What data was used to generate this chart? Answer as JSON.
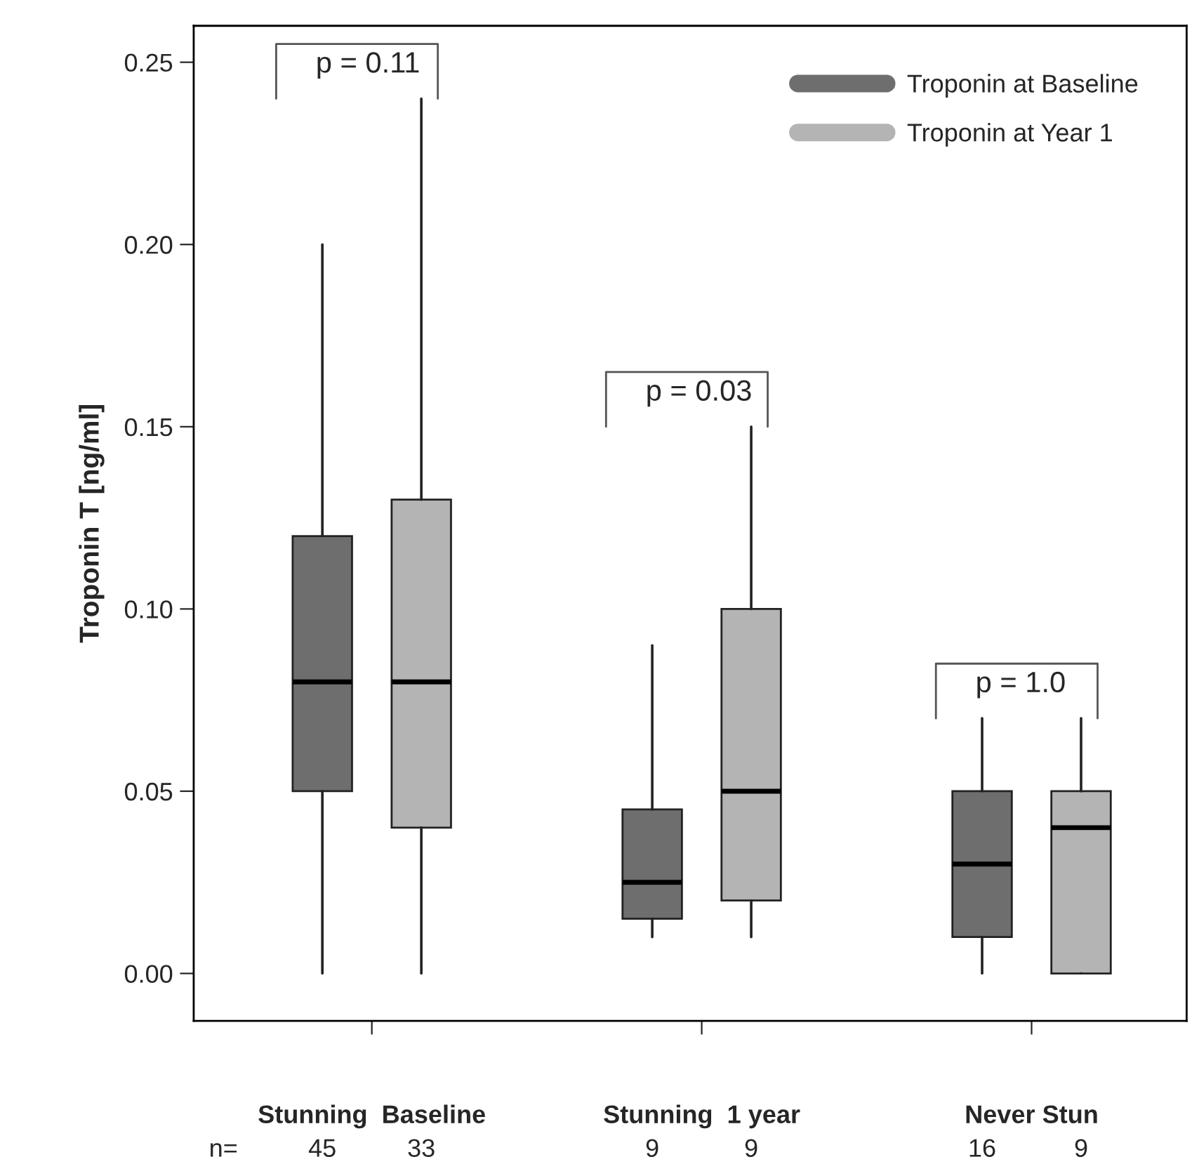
{
  "chart_data": {
    "type": "box",
    "ylabel": "Troponin T [ng/ml]",
    "categories": [
      "Stunning  Baseline",
      "Stunning  1 year",
      "Never Stun"
    ],
    "ylim": [
      -0.013,
      0.26
    ],
    "yticks": [
      {
        "value": 0,
        "label": "0.00"
      },
      {
        "value": 0.05,
        "label": "0.05"
      },
      {
        "value": 0.1,
        "label": "0.10"
      },
      {
        "value": 0.15,
        "label": "0.15"
      },
      {
        "value": 0.2,
        "label": "0.20"
      },
      {
        "value": 0.25,
        "label": "0.25"
      }
    ],
    "grid": false,
    "legend": "top right",
    "series": [
      {
        "name": "Troponin at Baseline",
        "color": "#6e6e6e",
        "boxes": [
          {
            "low": 0,
            "q1": 0.05,
            "median": 0.08,
            "q3": 0.12,
            "high": 0.2
          },
          {
            "low": 0.01,
            "q1": 0.015,
            "median": 0.025,
            "q3": 0.045,
            "high": 0.09
          },
          {
            "low": 0,
            "q1": 0.01,
            "median": 0.03,
            "q3": 0.05,
            "high": 0.07
          }
        ]
      },
      {
        "name": "Troponin at Year 1",
        "color": "#b4b4b4",
        "boxes": [
          {
            "low": 0,
            "q1": 0.04,
            "median": 0.08,
            "q3": 0.13,
            "high": 0.24
          },
          {
            "low": 0.01,
            "q1": 0.02,
            "median": 0.05,
            "q3": 0.1,
            "high": 0.15
          },
          {
            "low": 0,
            "q1": 0,
            "median": 0.04,
            "q3": 0.05,
            "high": 0.07
          }
        ]
      }
    ],
    "annotations": [
      "p = 0.11",
      "p = 0.03",
      "p = 1.0",
      "n=",
      "45",
      "33",
      "9",
      "9",
      "16",
      "9"
    ]
  }
}
